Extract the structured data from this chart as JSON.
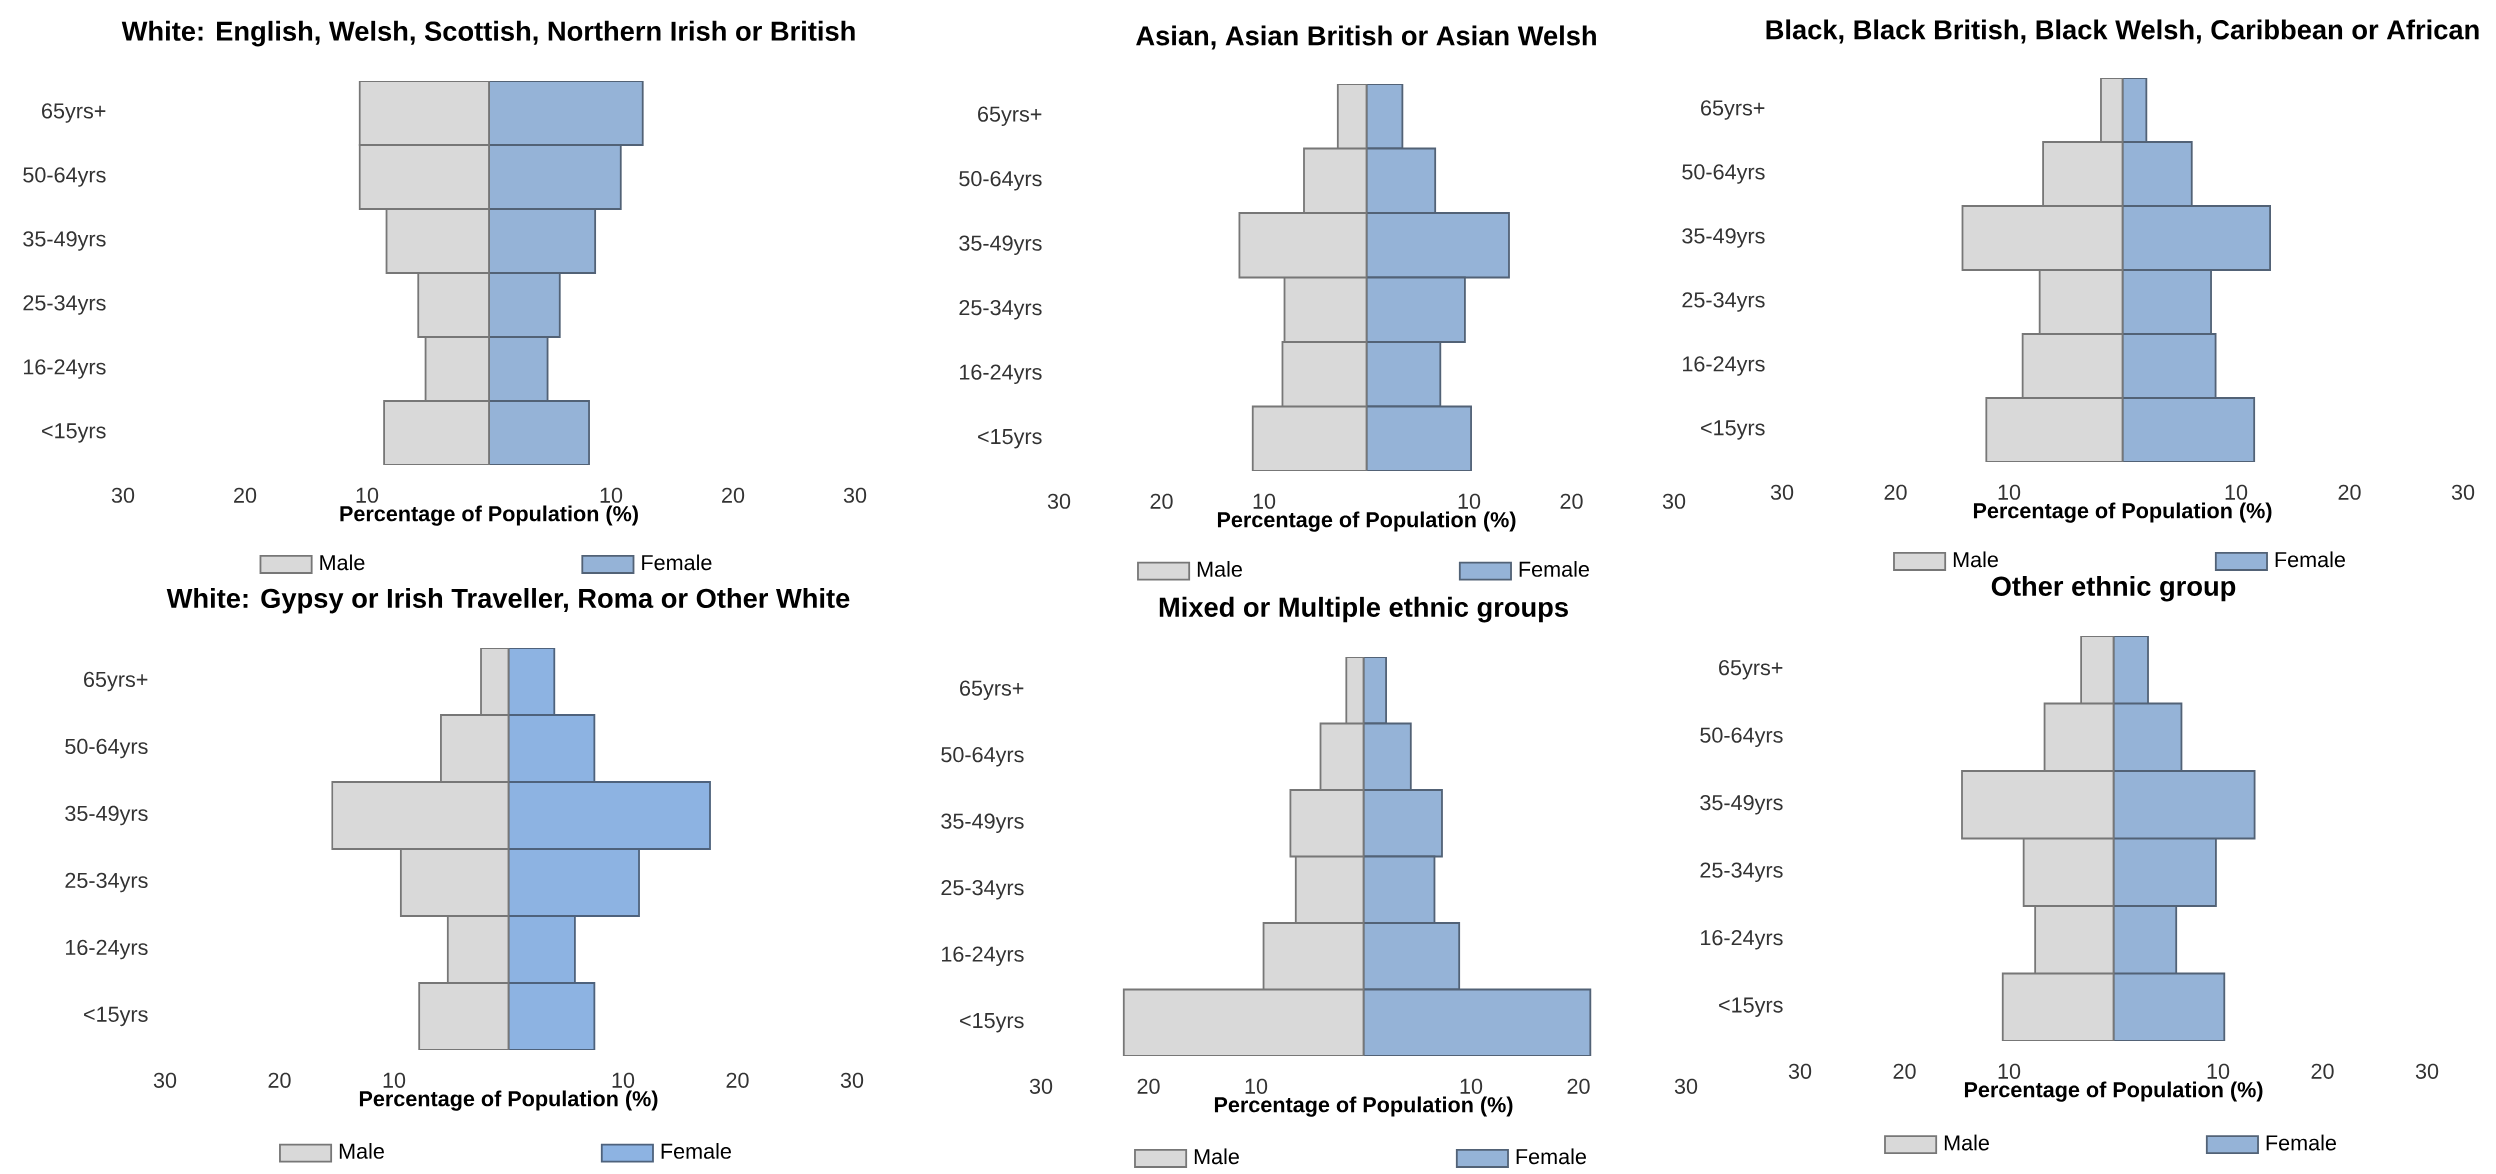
{
  "chart_data": [
    {
      "type": "bar",
      "stacked": true,
      "orientation": "horizontal",
      "title": "White: English, Welsh, Scottish, Northern Irish or British",
      "xlabel": "Percentage of Population (%)",
      "categories": [
        "65yrs+",
        "50-64yrs",
        "35-49yrs",
        "25-34yrs",
        "16-24yrs",
        "<15yrs"
      ],
      "xlim": [
        -30,
        30
      ],
      "xticks": [
        {
          "value": -30,
          "label": "30"
        },
        {
          "value": -20,
          "label": "20"
        },
        {
          "value": -10,
          "label": "10"
        },
        10,
        20,
        30
      ],
      "legend": "bottom",
      "series": [
        {
          "name": "Male",
          "color": "#d9d9d9",
          "values": [
            -10.6,
            -10.6,
            -8.4,
            -5.8,
            -5.2,
            -8.6
          ]
        },
        {
          "name": "Female",
          "color": "#95b3d7",
          "values": [
            12.6,
            10.8,
            8.7,
            5.8,
            4.8,
            8.2
          ]
        }
      ]
    },
    {
      "type": "bar",
      "stacked": true,
      "orientation": "horizontal",
      "title": "Asian, Asian British or Asian Welsh",
      "xlabel": "Percentage of Population (%)",
      "categories": [
        "65yrs+",
        "50-64yrs",
        "35-49yrs",
        "25-34yrs",
        "16-24yrs",
        "<15yrs"
      ],
      "xlim": [
        -30,
        30
      ],
      "xticks": [
        {
          "value": -30,
          "label": "30"
        },
        {
          "value": -20,
          "label": "20"
        },
        {
          "value": -10,
          "label": "10"
        },
        10,
        20,
        30
      ],
      "legend": "bottom",
      "series": [
        {
          "name": "Male",
          "color": "#d9d9d9",
          "values": [
            -2.8,
            -6.1,
            -12.4,
            -8.0,
            -8.2,
            -11.1
          ]
        },
        {
          "name": "Female",
          "color": "#95b3d7",
          "values": [
            3.5,
            6.7,
            13.9,
            9.6,
            7.2,
            10.2
          ]
        }
      ]
    },
    {
      "type": "bar",
      "stacked": true,
      "orientation": "horizontal",
      "title": "Black, Black British, Black Welsh, Caribbean or African",
      "xlabel": "Percentage of Population (%)",
      "categories": [
        "65yrs+",
        "50-64yrs",
        "35-49yrs",
        "25-34yrs",
        "16-24yrs",
        "<15yrs"
      ],
      "xlim": [
        -30,
        30
      ],
      "xticks": [
        {
          "value": -30,
          "label": "30"
        },
        {
          "value": -20,
          "label": "20"
        },
        {
          "value": -10,
          "label": "10"
        },
        10,
        20,
        30
      ],
      "legend": "bottom",
      "series": [
        {
          "name": "Male",
          "color": "#d9d9d9",
          "values": [
            -1.9,
            -7.0,
            -14.1,
            -7.3,
            -8.8,
            -12.0
          ]
        },
        {
          "name": "Female",
          "color": "#95b3d7",
          "values": [
            2.1,
            6.1,
            13.0,
            7.8,
            8.2,
            11.6
          ]
        }
      ]
    },
    {
      "type": "bar",
      "stacked": true,
      "orientation": "horizontal",
      "title": "White: Gypsy or Irish Traveller, Roma or Other White",
      "xlabel": "Percentage of Population (%)",
      "categories": [
        "65yrs+",
        "50-64yrs",
        "35-49yrs",
        "25-34yrs",
        "16-24yrs",
        "<15yrs"
      ],
      "xlim": [
        -30,
        30
      ],
      "xticks": [
        {
          "value": -30,
          "label": "30"
        },
        {
          "value": -20,
          "label": "20"
        },
        {
          "value": -10,
          "label": "10"
        },
        10,
        20,
        30
      ],
      "legend": "bottom",
      "series": [
        {
          "name": "Male",
          "color": "#d9d9d9",
          "values": [
            -2.4,
            -5.9,
            -15.4,
            -9.4,
            -5.3,
            -7.8
          ]
        },
        {
          "name": "Female",
          "color": "#8db3e2",
          "values": [
            4.0,
            7.5,
            17.6,
            11.4,
            5.8,
            7.5
          ]
        }
      ]
    },
    {
      "type": "bar",
      "stacked": true,
      "orientation": "horizontal",
      "title": "Mixed or Multiple ethnic groups",
      "xlabel": "Percentage of Population (%)",
      "categories": [
        "65yrs+",
        "50-64yrs",
        "35-49yrs",
        "25-34yrs",
        "16-24yrs",
        "<15yrs"
      ],
      "xlim": [
        -30,
        30
      ],
      "xticks": [
        {
          "value": -30,
          "label": "30"
        },
        {
          "value": -20,
          "label": "20"
        },
        {
          "value": -10,
          "label": "10"
        },
        10,
        20,
        30
      ],
      "legend": "bottom",
      "series": [
        {
          "name": "Male",
          "color": "#d9d9d9",
          "values": [
            -1.6,
            -4.0,
            -6.8,
            -6.3,
            -9.3,
            -22.3
          ]
        },
        {
          "name": "Female",
          "color": "#95b3d7",
          "values": [
            2.1,
            4.4,
            7.3,
            6.6,
            8.9,
            21.1
          ]
        }
      ]
    },
    {
      "type": "bar",
      "stacked": true,
      "orientation": "horizontal",
      "title": "Other ethnic group",
      "xlabel": "Percentage of Population (%)",
      "categories": [
        "65yrs+",
        "50-64yrs",
        "35-49yrs",
        "25-34yrs",
        "16-24yrs",
        "<15yrs"
      ],
      "xlim": [
        -30,
        30
      ],
      "xticks": [
        {
          "value": -30,
          "label": "30"
        },
        {
          "value": -20,
          "label": "20"
        },
        {
          "value": -10,
          "label": "10"
        },
        10,
        20,
        30
      ],
      "legend": "bottom",
      "series": [
        {
          "name": "Male",
          "color": "#d9d9d9",
          "values": [
            -3.1,
            -6.6,
            -14.5,
            -8.6,
            -7.5,
            -10.6
          ]
        },
        {
          "name": "Female",
          "color": "#95b3d7",
          "values": [
            3.3,
            6.5,
            13.5,
            9.8,
            6.0,
            10.6
          ]
        }
      ]
    }
  ]
}
